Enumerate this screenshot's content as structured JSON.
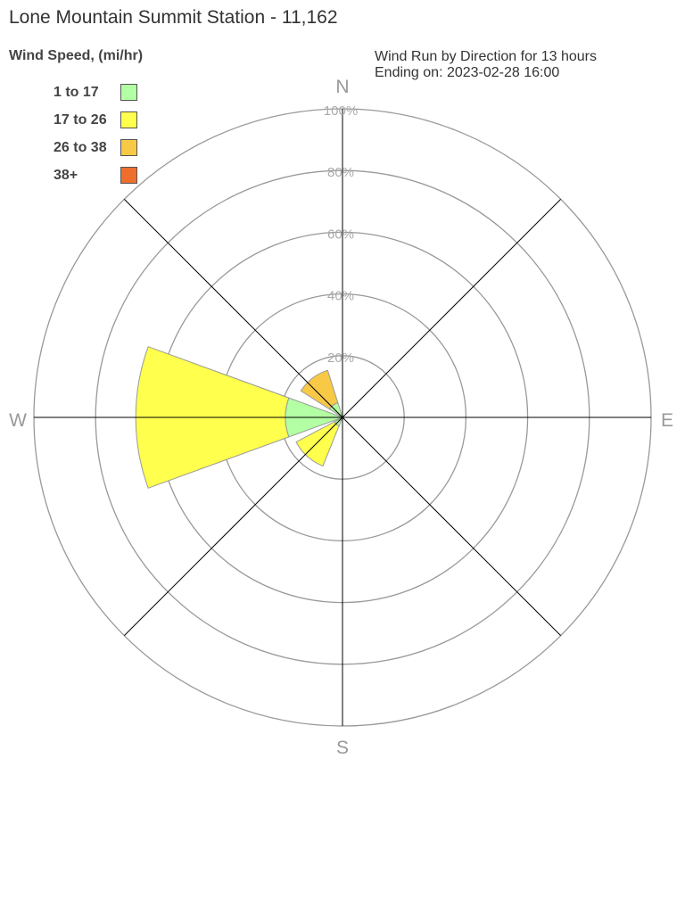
{
  "title": "Lone Mountain Summit Station - 11,162",
  "chart_data": {
    "type": "wind-rose",
    "title": "Lone Mountain Summit Station - 11,162",
    "subtitle_lines": [
      "Wind Run by Direction for 13 hours",
      "Ending on: 2023-02-28 16:00"
    ],
    "legend_title": "Wind Speed, (mi/hr)",
    "legend_placement": "top-left",
    "series": [
      {
        "name": "1 to 17",
        "color": "#b3ffa3"
      },
      {
        "name": "17 to 26",
        "color": "#ffff4d"
      },
      {
        "name": "26 to 38",
        "color": "#f7c945"
      },
      {
        "name": "38+",
        "color": "#ee6e2d"
      }
    ],
    "radial_ticks": [
      "20%",
      "40%",
      "60%",
      "80%",
      "100%"
    ],
    "radial_range": [
      0,
      100
    ],
    "compass_labels": [
      "N",
      "E",
      "S",
      "W"
    ],
    "sectors": [
      {
        "direction": "W",
        "angle": 270,
        "values": [
          18.5,
          48.5,
          0,
          0
        ]
      },
      {
        "direction": "NW",
        "angle": 322.5,
        "values": [
          5,
          0,
          11,
          0
        ]
      },
      {
        "direction": "SW",
        "angle": 222,
        "values": [
          3,
          14,
          0,
          0
        ]
      }
    ]
  }
}
